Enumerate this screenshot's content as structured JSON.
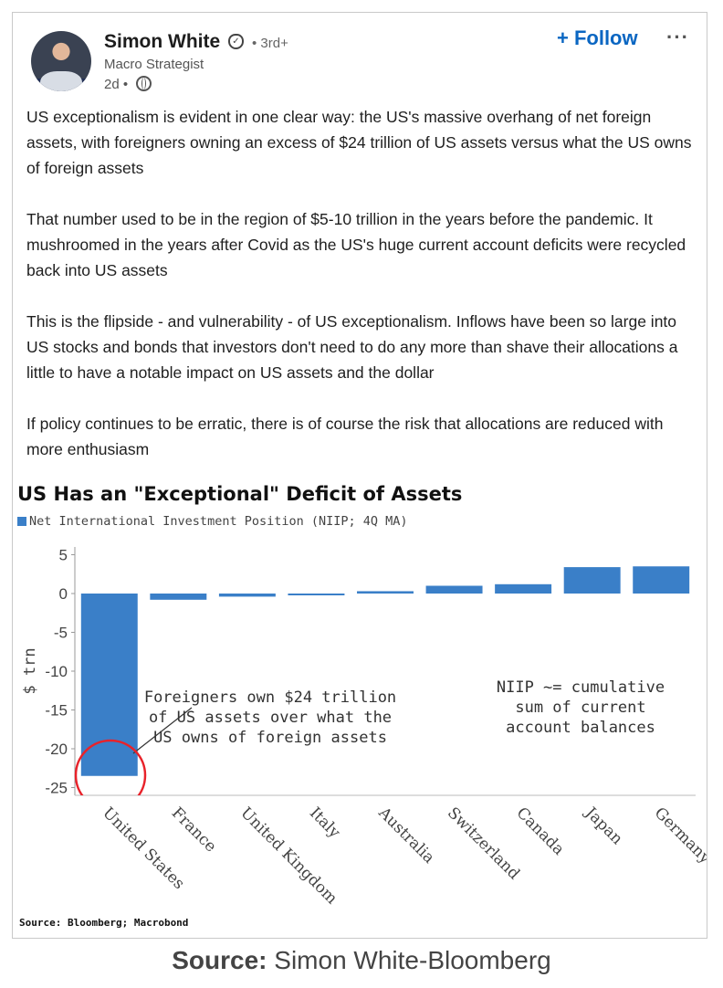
{
  "post": {
    "author": "Simon White",
    "degree": "• 3rd+",
    "headline": "Macro Strategist",
    "time": "2d •",
    "follow_label": "+ Follow",
    "more_label": "···",
    "paragraphs": [
      "US exceptionalism is evident in one clear way: the US's massive overhang of net foreign assets, with foreigners owning an excess of $24 trillion of US assets versus what the US owns of foreign assets",
      "That number used to be in the region of $5-10 trillion in the years before the pandemic. It mushroomed in the years after Covid as the US's huge current account deficits were recycled back into US assets",
      "This is the flipside - and vulnerability - of US exceptionalism. Inflows have been so large into US stocks and bonds that investors don't need to do any more than shave their allocations a little to have a notable impact on US assets and the dollar",
      "If policy continues to be erratic, there is of course the risk that allocations are reduced with more enthusiasm"
    ]
  },
  "chart_data": {
    "type": "bar",
    "title": "US Has an \"Exceptional\" Deficit of Assets",
    "legend": "Net International Investment Position (NIIP; 4Q MA)",
    "ylabel": "$ trn",
    "categories": [
      "United States",
      "France",
      "United Kingdom",
      "Italy",
      "Australia",
      "Switzerland",
      "Canada",
      "Japan",
      "Germany"
    ],
    "values": [
      -23.5,
      -0.8,
      -0.4,
      -0.1,
      0.3,
      1.0,
      1.2,
      3.4,
      3.5
    ],
    "ylim": [
      -26,
      6
    ],
    "yticks": [
      5,
      0,
      -5,
      -10,
      -15,
      -20,
      -25
    ],
    "bar_color": "#3a7fc8",
    "annotation_callout": [
      "Foreigners own $24 trillion",
      "of US assets over what the",
      "US owns of foreign assets"
    ],
    "annotation_note": [
      "NIIP ~= cumulative",
      "sum of current",
      "account balances"
    ],
    "highlight_color": "#e8222a",
    "source": "Source: Bloomberg; Macrobond"
  },
  "caption": {
    "label": "Source:",
    "text": " Simon White-Bloomberg"
  }
}
